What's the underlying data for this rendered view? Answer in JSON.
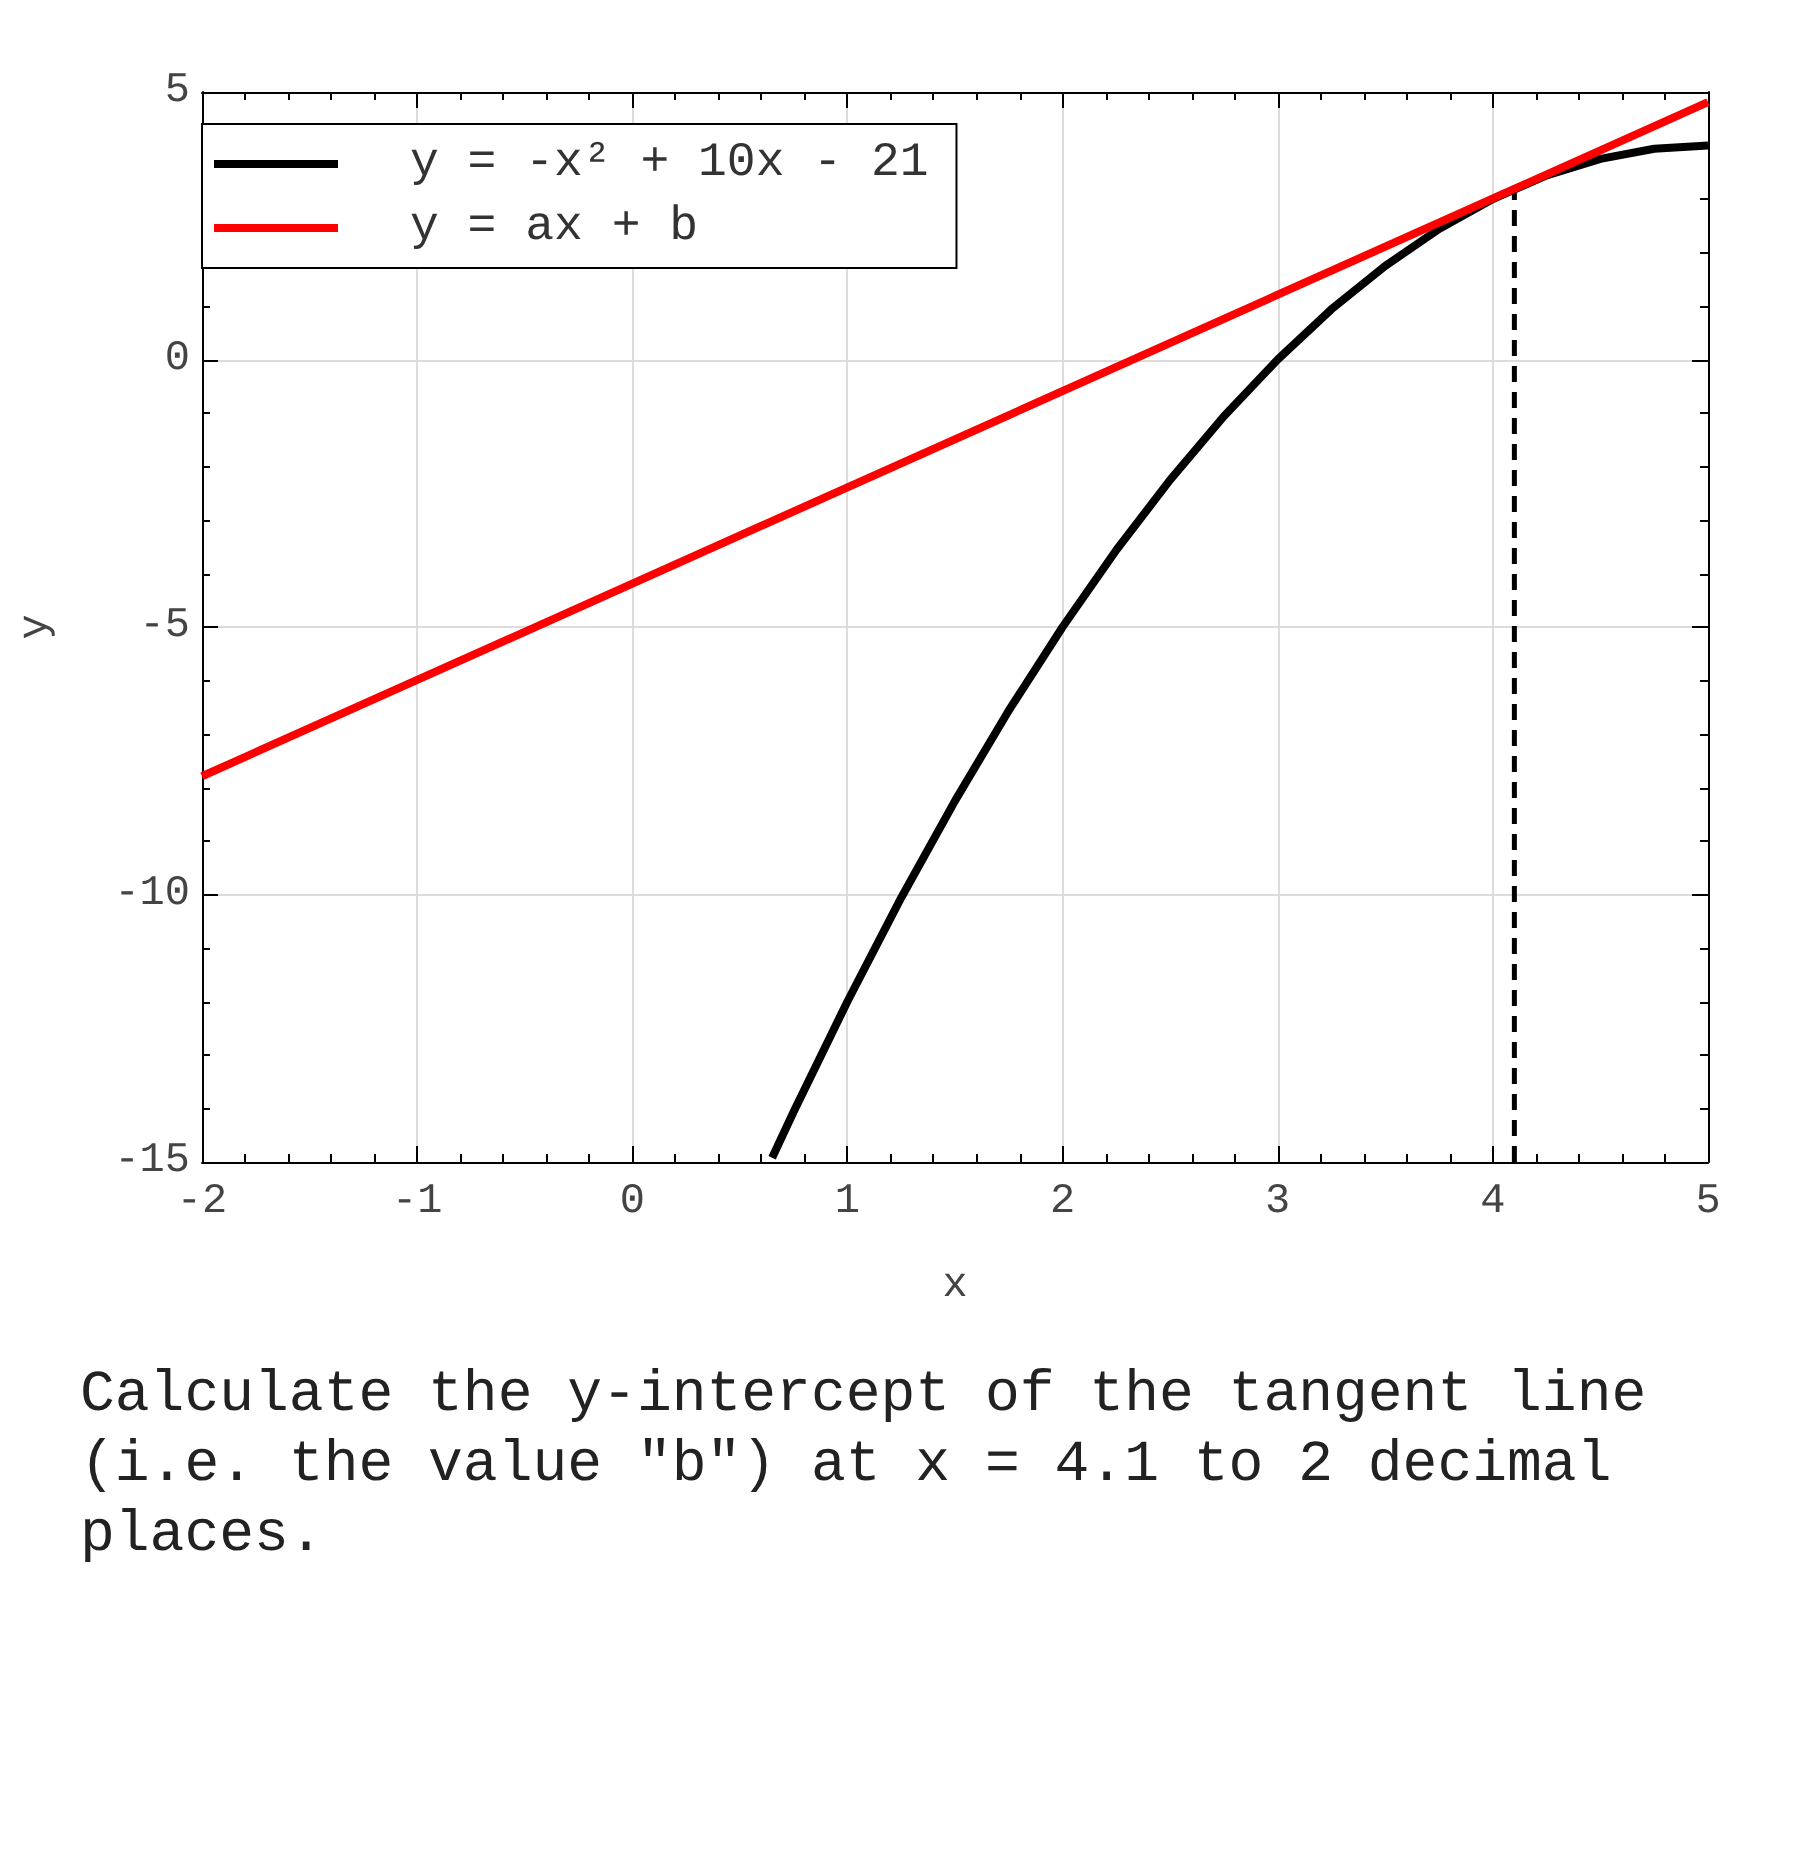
{
  "chart_data": {
    "type": "line",
    "xlabel": "x",
    "ylabel": "y",
    "xlim": [
      -2,
      5
    ],
    "ylim": [
      -15,
      5
    ],
    "xticks": [
      -2,
      -1,
      0,
      1,
      2,
      3,
      4,
      5
    ],
    "yticks": [
      -15,
      -10,
      -5,
      0,
      5
    ],
    "grid": true,
    "legend": "top left",
    "marker": "none",
    "annotations": [
      "Calculate the y-intercept of the tangent line (i.e. the value \"b\") at x = 4.1 to 2 decimal places."
    ],
    "series": [
      {
        "name": "y = -x² + 10x - 21",
        "color": "#000000",
        "x": [
          0.65,
          0.75,
          1,
          1.25,
          1.5,
          1.75,
          2,
          2.25,
          2.5,
          2.75,
          3,
          3.25,
          3.5,
          3.75,
          4,
          4.25,
          4.5,
          4.75,
          5
        ],
        "values": [
          -14.92,
          -14.06,
          -12,
          -10.06,
          -8.25,
          -6.56,
          -5,
          -3.56,
          -2.25,
          -1.06,
          0,
          0.94,
          1.75,
          2.44,
          3,
          3.44,
          3.75,
          3.94,
          4
        ]
      },
      {
        "name": "y = ax + b",
        "color": "#ff0000",
        "x": [
          -2,
          5
        ],
        "values": [
          -7.79,
          4.81
        ]
      },
      {
        "color": "#000000",
        "line_style": "dashed",
        "x": [
          4.1,
          4.1
        ],
        "values": [
          -15,
          3.19
        ]
      }
    ]
  }
}
